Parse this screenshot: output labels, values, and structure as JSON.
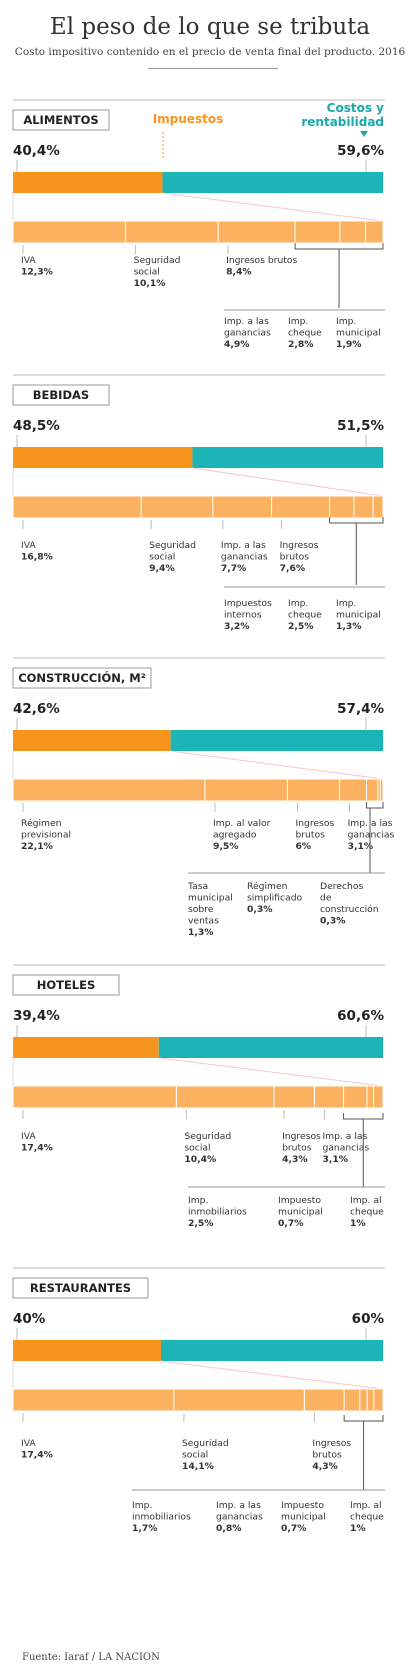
{
  "title": "El peso de lo que se tributa",
  "subtitle": "Costo impositivo contenido en el precio de venta final del producto. 2016",
  "source": "Fuente: Iaraf / LA NACION",
  "legend": {
    "taxes": "Impuestos",
    "costs_line1": "Costos y",
    "costs_line2": "rentabilidad"
  },
  "colors": {
    "tax": "#f7941d",
    "tax_light": "#fbb160",
    "cost": "#1db4b7",
    "text": "#333333",
    "accent_text": "#f7941d",
    "teal_text": "#1aa8ab"
  },
  "chart_data": [
    {
      "type": "bar",
      "category": "ALIMENTOS",
      "tax_total": "40,4%",
      "cost_total": "59,6%",
      "tax_value": 40.4,
      "cost_value": 59.6,
      "components": [
        {
          "name": "IVA",
          "value_label": "12,3%",
          "value": 12.3
        },
        {
          "name": "Seguridad social",
          "value_label": "10,1%",
          "value": 10.1
        },
        {
          "name": "Ingresos brutos",
          "value_label": "8,4%",
          "value": 8.4
        },
        {
          "name": "Imp. a las ganancias",
          "value_label": "4,9%",
          "value": 4.9
        },
        {
          "name": "Imp. cheque",
          "value_label": "2,8%",
          "value": 2.8
        },
        {
          "name": "Imp. municipal",
          "value_label": "1,9%",
          "value": 1.9
        }
      ]
    },
    {
      "type": "bar",
      "category": "BEBIDAS",
      "tax_total": "48,5%",
      "cost_total": "51,5%",
      "tax_value": 48.5,
      "cost_value": 51.5,
      "components": [
        {
          "name": "IVA",
          "value_label": "16,8%",
          "value": 16.8
        },
        {
          "name": "Seguridad social",
          "value_label": "9,4%",
          "value": 9.4
        },
        {
          "name": "Imp. a las ganancias",
          "value_label": "7,7%",
          "value": 7.7
        },
        {
          "name": "Ingresos brutos",
          "value_label": "7,6%",
          "value": 7.6
        },
        {
          "name": "Impuestos internos",
          "value_label": "3,2%",
          "value": 3.2
        },
        {
          "name": "Imp. cheque",
          "value_label": "2,5%",
          "value": 2.5
        },
        {
          "name": "Imp. municipal",
          "value_label": "1,3%",
          "value": 1.3
        }
      ]
    },
    {
      "type": "bar",
      "category": "CONSTRUCCIÓN, M²",
      "tax_total": "42,6%",
      "cost_total": "57,4%",
      "tax_value": 42.6,
      "cost_value": 57.4,
      "components": [
        {
          "name": "Régimen previsional",
          "value_label": "22,1%",
          "value": 22.1
        },
        {
          "name": "Imp. al valor agregado",
          "value_label": "9,5%",
          "value": 9.5
        },
        {
          "name": "Ingresos brutos",
          "value_label": "6%",
          "value": 6
        },
        {
          "name": "Imp. a las ganancias",
          "value_label": "3,1%",
          "value": 3.1
        },
        {
          "name": "Tasa municipal sobre ventas",
          "value_label": "1,3%",
          "value": 1.3
        },
        {
          "name": "Régimen simplificado",
          "value_label": "0,3%",
          "value": 0.3
        },
        {
          "name": "Derechos de construcción",
          "value_label": "0,3%",
          "value": 0.3
        }
      ]
    },
    {
      "type": "bar",
      "category": "HOTELES",
      "tax_total": "39,4%",
      "cost_total": "60,6%",
      "tax_value": 39.4,
      "cost_value": 60.6,
      "components": [
        {
          "name": "IVA",
          "value_label": "17,4%",
          "value": 17.4
        },
        {
          "name": "Seguridad social",
          "value_label": "10,4%",
          "value": 10.4
        },
        {
          "name": "Ingresos brutos",
          "value_label": "4,3%",
          "value": 4.3
        },
        {
          "name": "Imp. a las ganancias",
          "value_label": "3,1%",
          "value": 3.1
        },
        {
          "name": "Imp. inmobiliarios",
          "value_label": "2,5%",
          "value": 2.5
        },
        {
          "name": "Impuesto municipal",
          "value_label": "0,7%",
          "value": 0.7
        },
        {
          "name": "Imp. al cheque",
          "value_label": "1%",
          "value": 1
        }
      ]
    },
    {
      "type": "bar",
      "category": "RESTAURANTES",
      "tax_total": "40%",
      "cost_total": "60%",
      "tax_value": 40,
      "cost_value": 60,
      "components": [
        {
          "name": "IVA",
          "value_label": "17,4%",
          "value": 17.4
        },
        {
          "name": "Seguridad social",
          "value_label": "14,1%",
          "value": 14.1
        },
        {
          "name": "Ingresos brutos",
          "value_label": "4,3%",
          "value": 4.3
        },
        {
          "name": "Imp. inmobiliarios",
          "value_label": "1,7%",
          "value": 1.7
        },
        {
          "name": "Imp. a las ganancias",
          "value_label": "0,8%",
          "value": 0.8
        },
        {
          "name": "Impuesto municipal",
          "value_label": "0,7%",
          "value": 0.7
        },
        {
          "name": "Imp. al cheque",
          "value_label": "1%",
          "value": 1
        }
      ]
    }
  ]
}
